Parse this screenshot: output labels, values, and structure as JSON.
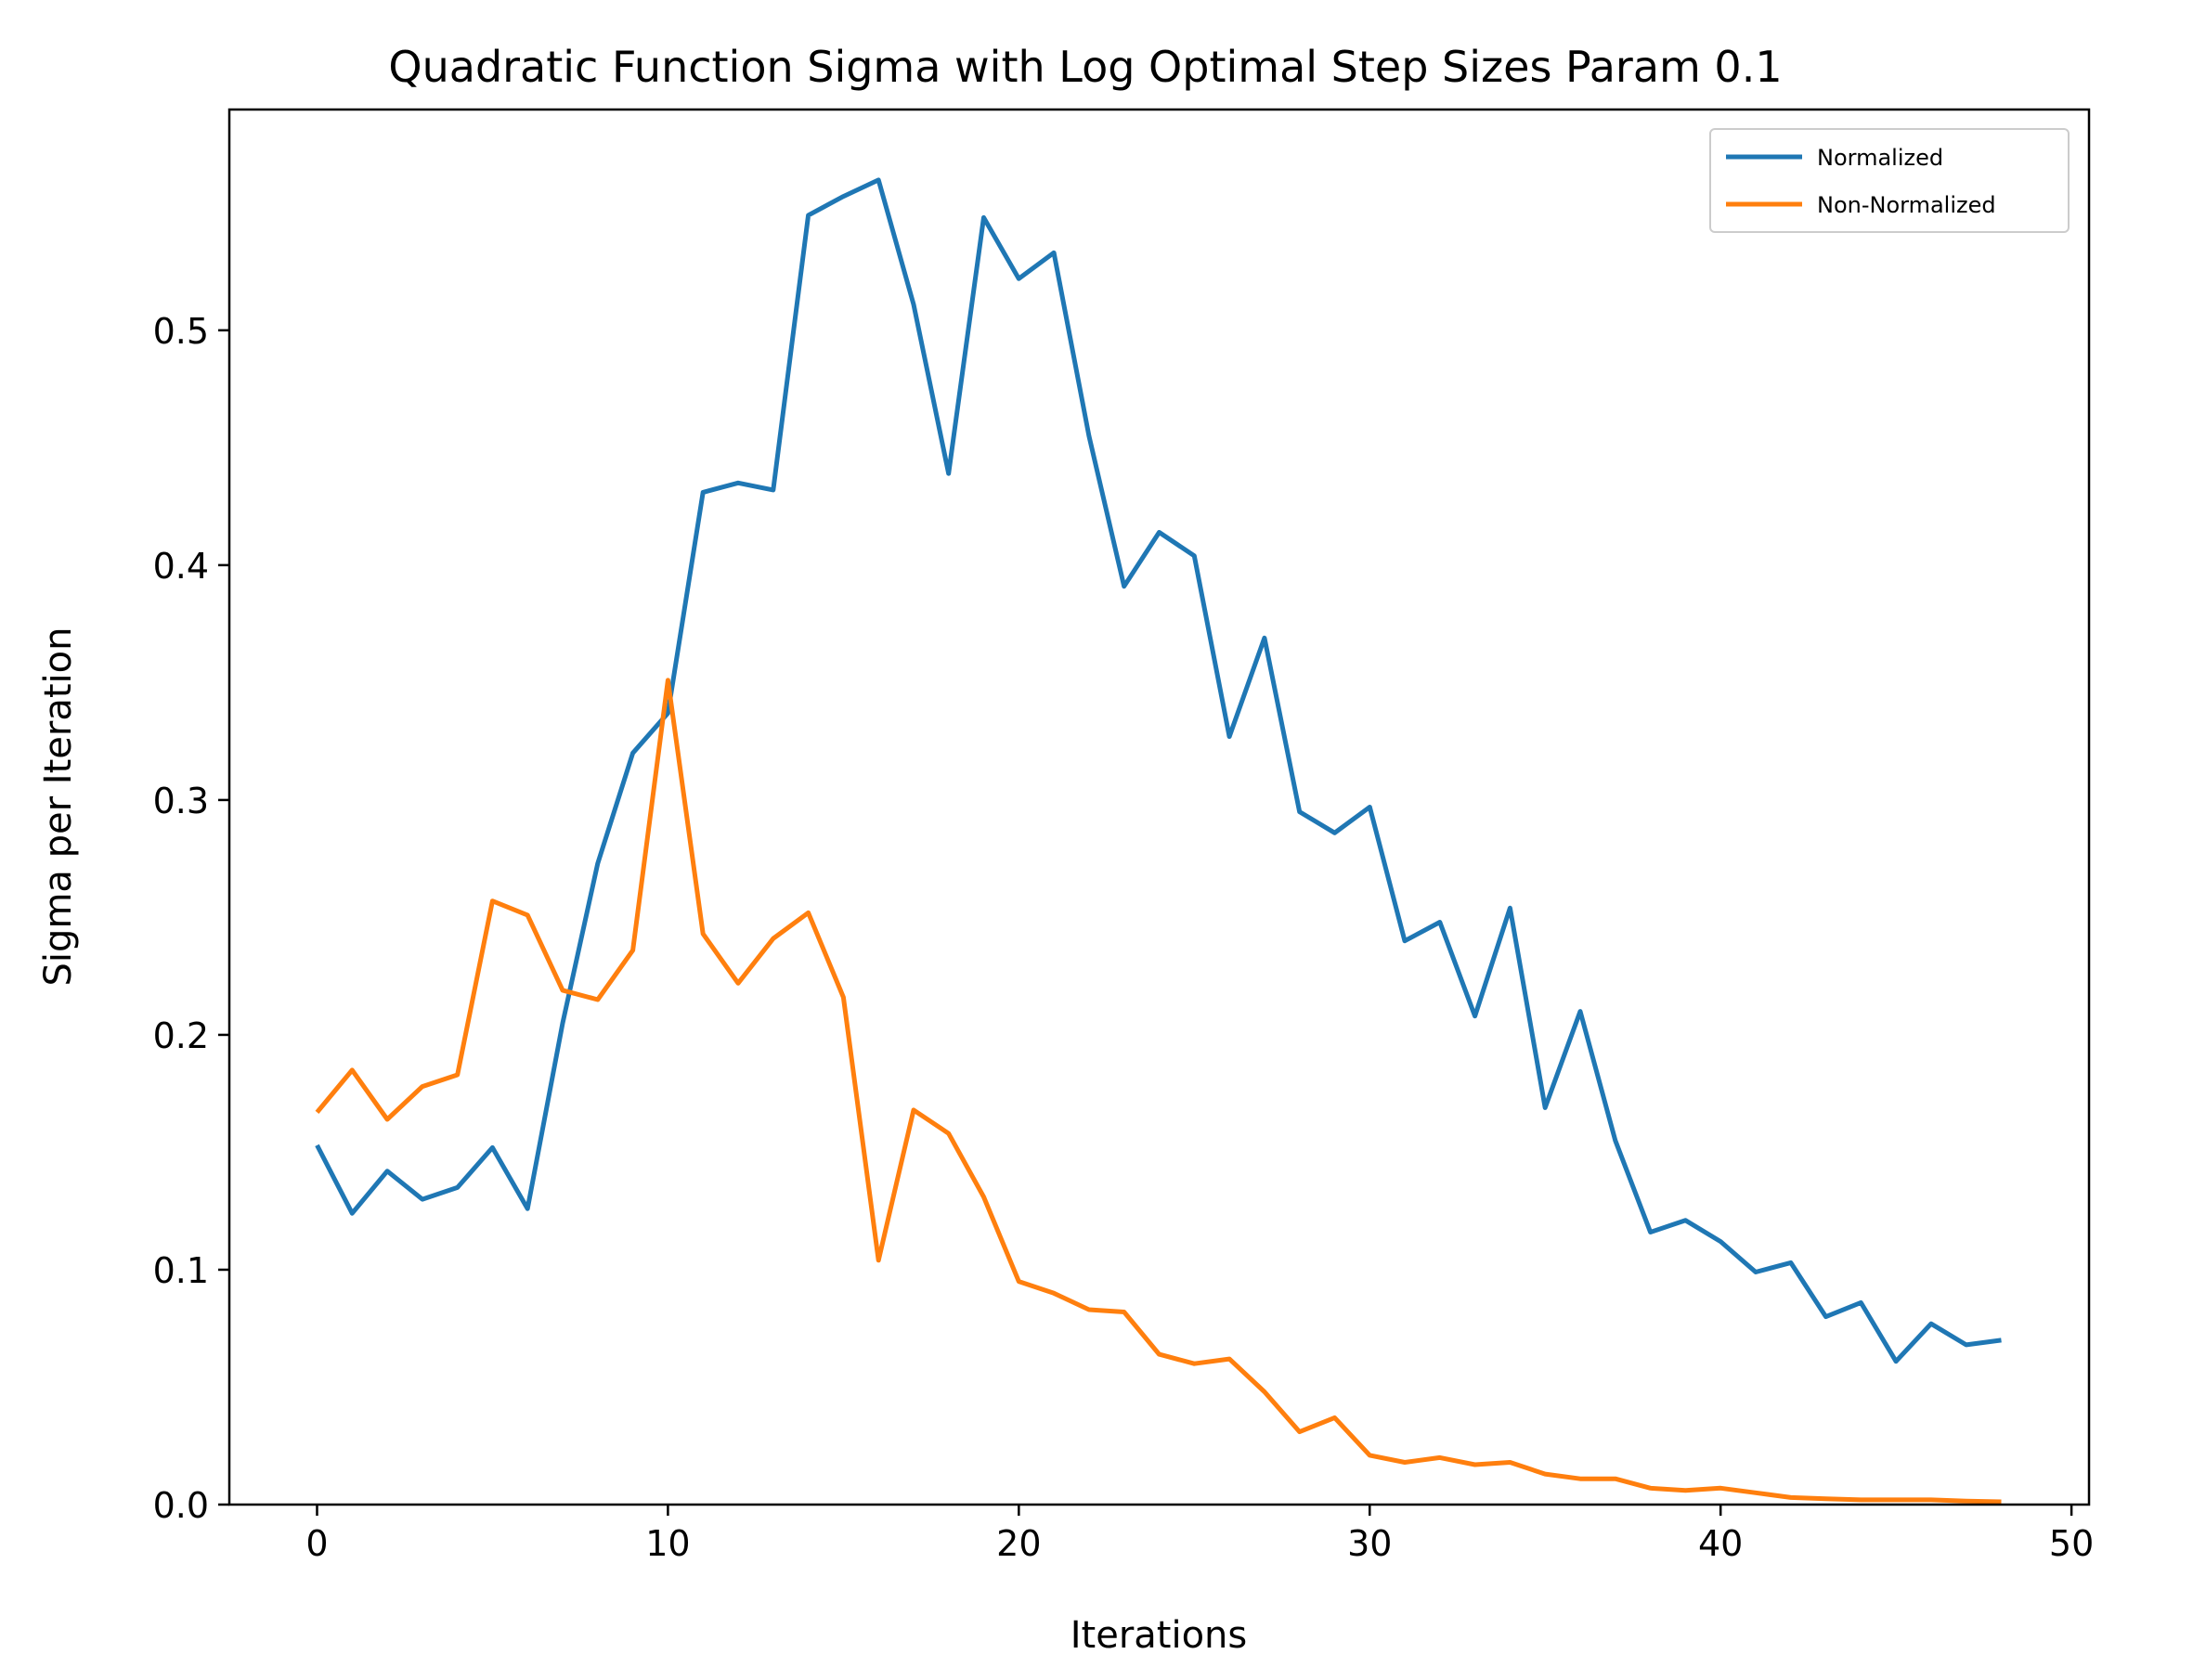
{
  "chart_data": {
    "type": "line",
    "title": "Quadratic Function Sigma with Log Optimal Step Sizes Param 0.1",
    "xlabel": "Iterations",
    "ylabel": "Sigma per Iteration",
    "xlim": [
      -2.5,
      50.5
    ],
    "ylim": [
      0.0,
      0.594
    ],
    "xticks": [
      0,
      10,
      20,
      30,
      40,
      50
    ],
    "xtick_labels": [
      "0",
      "10",
      "20",
      "30",
      "40",
      "50"
    ],
    "yticks": [
      0.0,
      0.1,
      0.2,
      0.3,
      0.4,
      0.5
    ],
    "ytick_labels": [
      "0.0",
      "0.1",
      "0.2",
      "0.3",
      "0.4",
      "0.5"
    ],
    "grid": false,
    "legend_position": "top-right",
    "x": [
      0,
      1,
      2,
      3,
      4,
      5,
      6,
      7,
      8,
      9,
      10,
      11,
      12,
      13,
      14,
      15,
      16,
      17,
      18,
      19,
      20,
      21,
      22,
      23,
      24,
      25,
      26,
      27,
      28,
      29,
      30,
      31,
      32,
      33,
      34,
      35,
      36,
      37,
      38,
      39,
      40,
      41,
      42,
      43,
      44,
      45,
      46,
      47,
      48
    ],
    "series": [
      {
        "name": "Normalized",
        "color": "#1f77b4",
        "values": [
          0.153,
          0.124,
          0.142,
          0.13,
          0.135,
          0.152,
          0.126,
          0.205,
          0.273,
          0.32,
          0.337,
          0.431,
          0.435,
          0.432,
          0.549,
          0.557,
          0.564,
          0.511,
          0.439,
          0.548,
          0.522,
          0.533,
          0.455,
          0.391,
          0.414,
          0.404,
          0.327,
          0.369,
          0.295,
          0.286,
          0.297,
          0.24,
          0.248,
          0.208,
          0.254,
          0.169,
          0.21,
          0.155,
          0.116,
          0.121,
          0.112,
          0.099,
          0.103,
          0.08,
          0.086,
          0.061,
          0.077,
          0.068,
          0.07
        ]
      },
      {
        "name": "Non-Normalized",
        "color": "#ff7f0e",
        "values": [
          0.167,
          0.185,
          0.164,
          0.178,
          0.183,
          0.257,
          0.251,
          0.219,
          0.215,
          0.236,
          0.351,
          0.243,
          0.222,
          0.241,
          0.252,
          0.216,
          0.104,
          0.168,
          0.158,
          0.131,
          0.095,
          0.09,
          0.083,
          0.082,
          0.064,
          0.06,
          0.062,
          0.048,
          0.031,
          0.037,
          0.021,
          0.018,
          0.02,
          0.017,
          0.018,
          0.013,
          0.011,
          0.011,
          0.007,
          0.006,
          0.007,
          0.005,
          0.003,
          0.0025,
          0.002,
          0.002,
          0.002,
          0.0015,
          0.0012
        ]
      }
    ]
  }
}
